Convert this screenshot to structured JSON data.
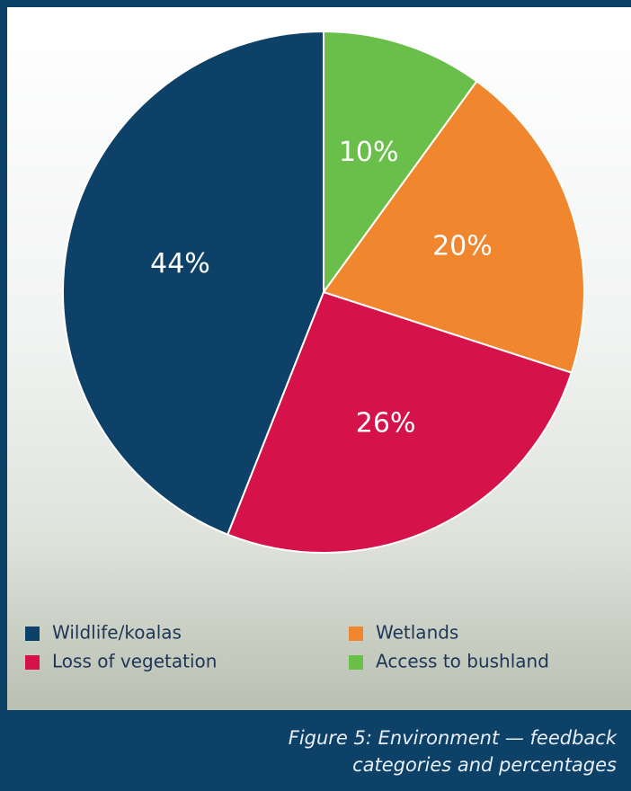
{
  "chart_data": {
    "type": "pie",
    "categories": [
      "Access to bushland",
      "Wetlands",
      "Loss of vegetation",
      "Wildlife/koalas"
    ],
    "values": [
      10,
      20,
      26,
      44
    ],
    "value_labels": [
      "10%",
      "20%",
      "26%",
      "44%"
    ],
    "colors": [
      "#6abf4b",
      "#f0862e",
      "#d6124a",
      "#0d4168"
    ],
    "caption": [
      "Figure 5: Environment — feedback",
      "categories and percentages"
    ]
  }
}
